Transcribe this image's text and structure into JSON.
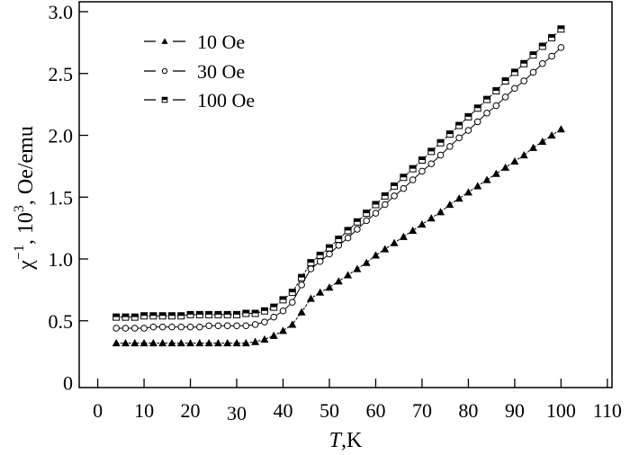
{
  "chart_data": {
    "type": "line",
    "title": "",
    "xlabel_italic": "T",
    "xlabel_rest": ",K",
    "ylabel_parts": [
      {
        "text": "χ",
        "sup": false
      },
      {
        "text": "−1",
        "sup": true
      },
      {
        "text": ", 10",
        "sup": false
      },
      {
        "text": "3",
        "sup": true
      },
      {
        "text": ",  Oe/emu",
        "sup": false
      }
    ],
    "xlim": [
      -4,
      111
    ],
    "ylim": [
      -0.04,
      3.08
    ],
    "xticks": [
      0,
      10,
      20,
      30,
      40,
      50,
      60,
      70,
      80,
      90,
      100,
      110
    ],
    "yticks": [
      0,
      0.5,
      1.0,
      1.5,
      2.0,
      2.5,
      3.0
    ],
    "ytick_labels": [
      "0",
      "0.5",
      "1.0",
      "1.5",
      "2.0",
      "2.5",
      "3.0"
    ],
    "grid": false,
    "legend_position": "top-left",
    "x": [
      4,
      6,
      8,
      10,
      12,
      14,
      16,
      18,
      20,
      22,
      24,
      26,
      28,
      30,
      32,
      34,
      36,
      38,
      40,
      42,
      44,
      46,
      48,
      50,
      52,
      54,
      56,
      58,
      60,
      62,
      64,
      66,
      68,
      70,
      72,
      74,
      76,
      78,
      80,
      82,
      84,
      86,
      88,
      90,
      92,
      94,
      96,
      98,
      100
    ],
    "series": [
      {
        "name": "10 Oe",
        "marker": "triangle-filled",
        "values": [
          0.32,
          0.32,
          0.32,
          0.32,
          0.32,
          0.32,
          0.32,
          0.32,
          0.32,
          0.32,
          0.32,
          0.32,
          0.32,
          0.32,
          0.32,
          0.33,
          0.35,
          0.38,
          0.42,
          0.47,
          0.57,
          0.68,
          0.73,
          0.77,
          0.82,
          0.87,
          0.92,
          0.97,
          1.03,
          1.08,
          1.13,
          1.18,
          1.23,
          1.28,
          1.33,
          1.38,
          1.44,
          1.49,
          1.54,
          1.59,
          1.64,
          1.69,
          1.74,
          1.79,
          1.84,
          1.9,
          1.95,
          2.0,
          2.05
        ]
      },
      {
        "name": "30 Oe",
        "marker": "circle-open",
        "values": [
          0.44,
          0.44,
          0.44,
          0.44,
          0.45,
          0.45,
          0.45,
          0.45,
          0.45,
          0.45,
          0.46,
          0.46,
          0.46,
          0.46,
          0.46,
          0.47,
          0.49,
          0.53,
          0.58,
          0.65,
          0.79,
          0.92,
          0.98,
          1.04,
          1.11,
          1.17,
          1.24,
          1.31,
          1.37,
          1.44,
          1.51,
          1.57,
          1.64,
          1.71,
          1.77,
          1.84,
          1.91,
          1.98,
          2.04,
          2.11,
          2.18,
          2.24,
          2.31,
          2.38,
          2.44,
          2.51,
          2.58,
          2.64,
          2.71
        ]
      },
      {
        "name": "100 Oe",
        "marker": "square-half",
        "values": [
          0.53,
          0.53,
          0.53,
          0.54,
          0.54,
          0.54,
          0.54,
          0.54,
          0.55,
          0.55,
          0.55,
          0.55,
          0.55,
          0.55,
          0.56,
          0.56,
          0.58,
          0.61,
          0.67,
          0.73,
          0.85,
          0.97,
          1.03,
          1.09,
          1.16,
          1.23,
          1.3,
          1.37,
          1.44,
          1.51,
          1.59,
          1.66,
          1.73,
          1.8,
          1.87,
          1.94,
          2.01,
          2.08,
          2.15,
          2.22,
          2.29,
          2.36,
          2.44,
          2.51,
          2.58,
          2.65,
          2.72,
          2.79,
          2.86
        ]
      }
    ],
    "colors": {
      "ink": "#000000",
      "background": "#ffffff"
    }
  }
}
